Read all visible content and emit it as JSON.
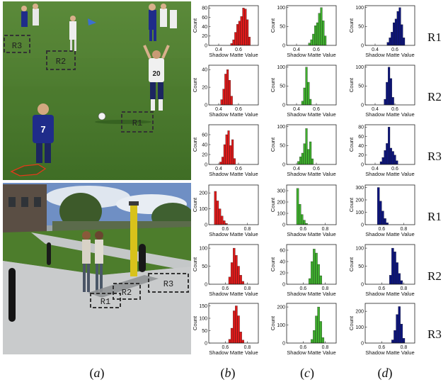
{
  "photos": {
    "soccer": {
      "regions": [
        "R3",
        "R2",
        "R1"
      ],
      "player_numbers": [
        "7",
        "20"
      ]
    },
    "campus": {
      "regions": [
        "R1",
        "R2",
        "R3"
      ]
    }
  },
  "column_labels": [
    {
      "open": "(",
      "letter": "a",
      "close": ")"
    },
    {
      "open": "(",
      "letter": "b",
      "close": ")"
    },
    {
      "open": "(",
      "letter": "c",
      "close": ")"
    },
    {
      "open": "(",
      "letter": "d",
      "close": ")"
    }
  ],
  "row_labels": [
    "R1",
    "R2",
    "R3",
    "R1",
    "R2",
    "R3"
  ],
  "colors": {
    "red": "#dd1a1a",
    "green": "#3fae2e",
    "blue": "#0d157d"
  },
  "chart_data": [
    {
      "type": "bar",
      "ylabel": "Count",
      "xlabel": "Shadow Matte Value",
      "xlim": [
        0.3,
        0.8
      ],
      "xticks": [
        0.4,
        0.6
      ],
      "ylim": [
        0,
        85
      ],
      "yticks": [
        0,
        20,
        40,
        60,
        80
      ],
      "color": "red",
      "x": [
        0.53,
        0.55,
        0.57,
        0.59,
        0.61,
        0.63,
        0.65,
        0.67,
        0.69,
        0.71
      ],
      "values": [
        4,
        12,
        28,
        45,
        52,
        62,
        80,
        78,
        55,
        18
      ]
    },
    {
      "type": "bar",
      "ylabel": "Count",
      "xlabel": "Shadow Matte Value",
      "xlim": [
        0.3,
        0.8
      ],
      "xticks": [
        0.4,
        0.6
      ],
      "ylim": [
        0,
        105
      ],
      "yticks": [
        0,
        50,
        100
      ],
      "color": "green",
      "x": [
        0.53,
        0.55,
        0.57,
        0.59,
        0.61,
        0.63,
        0.65,
        0.67,
        0.69
      ],
      "values": [
        6,
        15,
        30,
        52,
        60,
        85,
        100,
        65,
        25
      ]
    },
    {
      "type": "bar",
      "ylabel": "Count",
      "xlabel": "Shadow Matte Value",
      "xlim": [
        0.3,
        0.8
      ],
      "xticks": [
        0.4,
        0.6
      ],
      "ylim": [
        0,
        105
      ],
      "yticks": [
        0,
        50,
        100
      ],
      "color": "blue",
      "x": [
        0.53,
        0.55,
        0.57,
        0.59,
        0.61,
        0.63,
        0.65,
        0.67,
        0.69
      ],
      "values": [
        8,
        20,
        35,
        60,
        70,
        90,
        100,
        55,
        20
      ]
    },
    {
      "type": "bar",
      "ylabel": "Count",
      "xlabel": "Shadow Matte Value",
      "xlim": [
        0.3,
        0.8
      ],
      "xticks": [
        0.4,
        0.6
      ],
      "ylim": [
        0,
        45
      ],
      "yticks": [
        0,
        20,
        40
      ],
      "color": "red",
      "x": [
        0.43,
        0.45,
        0.47,
        0.49,
        0.51,
        0.53
      ],
      "values": [
        6,
        18,
        35,
        40,
        28,
        10
      ]
    },
    {
      "type": "bar",
      "ylabel": "Count",
      "xlabel": "Shadow Matte Value",
      "xlim": [
        0.3,
        0.8
      ],
      "xticks": [
        0.4,
        0.6
      ],
      "ylim": [
        0,
        105
      ],
      "yticks": [
        0,
        50,
        100
      ],
      "color": "green",
      "x": [
        0.46,
        0.48,
        0.5,
        0.52,
        0.54
      ],
      "values": [
        10,
        45,
        100,
        60,
        15
      ]
    },
    {
      "type": "bar",
      "ylabel": "Count",
      "xlabel": "Shadow Matte Value",
      "xlim": [
        0.3,
        0.8
      ],
      "xticks": [
        0.4,
        0.6
      ],
      "ylim": [
        0,
        105
      ],
      "yticks": [
        0,
        50,
        100
      ],
      "color": "blue",
      "x": [
        0.5,
        0.52,
        0.54,
        0.56,
        0.58
      ],
      "values": [
        15,
        60,
        100,
        70,
        20
      ]
    },
    {
      "type": "bar",
      "ylabel": "Count",
      "xlabel": "Shadow Matte Value",
      "xlim": [
        0.3,
        0.8
      ],
      "xticks": [
        0.4,
        0.6
      ],
      "ylim": [
        0,
        80
      ],
      "yticks": [
        0,
        20,
        40,
        60
      ],
      "color": "red",
      "x": [
        0.42,
        0.44,
        0.46,
        0.48,
        0.5,
        0.52,
        0.54,
        0.56
      ],
      "values": [
        5,
        15,
        40,
        60,
        68,
        38,
        50,
        12
      ]
    },
    {
      "type": "bar",
      "ylabel": "Count",
      "xlabel": "Shadow Matte Value",
      "xlim": [
        0.3,
        0.8
      ],
      "xticks": [
        0.4,
        0.6
      ],
      "ylim": [
        0,
        105
      ],
      "yticks": [
        0,
        50,
        100
      ],
      "color": "green",
      "x": [
        0.42,
        0.44,
        0.46,
        0.48,
        0.5,
        0.52,
        0.54,
        0.56
      ],
      "values": [
        8,
        20,
        30,
        55,
        95,
        40,
        60,
        15
      ]
    },
    {
      "type": "bar",
      "ylabel": "Count",
      "xlabel": "Shadow Matte Value",
      "xlim": [
        0.3,
        0.8
      ],
      "xticks": [
        0.4,
        0.6
      ],
      "ylim": [
        0,
        85
      ],
      "yticks": [
        0,
        20,
        40,
        60,
        80
      ],
      "color": "blue",
      "x": [
        0.46,
        0.48,
        0.5,
        0.52,
        0.54,
        0.56,
        0.58,
        0.6,
        0.62
      ],
      "values": [
        6,
        15,
        30,
        45,
        80,
        35,
        28,
        20,
        8
      ]
    },
    {
      "type": "bar",
      "ylabel": "Count",
      "xlabel": "Shadow Matte Value",
      "xlim": [
        0.45,
        0.9
      ],
      "xticks": [
        0.6,
        0.8
      ],
      "ylim": [
        0,
        250
      ],
      "yticks": [
        0,
        100,
        200
      ],
      "color": "red",
      "x": [
        0.51,
        0.53,
        0.55,
        0.57,
        0.59,
        0.61
      ],
      "values": [
        210,
        150,
        100,
        55,
        25,
        8
      ]
    },
    {
      "type": "bar",
      "ylabel": "Count",
      "xlabel": "Shadow Matte Value",
      "xlim": [
        0.45,
        0.9
      ],
      "xticks": [
        0.6,
        0.8
      ],
      "ylim": [
        0,
        350
      ],
      "yticks": [
        0,
        100,
        200,
        300
      ],
      "color": "green",
      "x": [
        0.55,
        0.57,
        0.59,
        0.61,
        0.63
      ],
      "values": [
        320,
        180,
        90,
        40,
        12
      ]
    },
    {
      "type": "bar",
      "ylabel": "Count",
      "xlabel": "Shadow Matte Value",
      "xlim": [
        0.45,
        0.9
      ],
      "xticks": [
        0.6,
        0.8
      ],
      "ylim": [
        0,
        320
      ],
      "yticks": [
        0,
        100,
        200,
        300
      ],
      "color": "blue",
      "x": [
        0.57,
        0.59,
        0.61,
        0.63,
        0.65
      ],
      "values": [
        300,
        190,
        110,
        50,
        15
      ]
    },
    {
      "type": "bar",
      "ylabel": "Count",
      "xlabel": "Shadow Matte Value",
      "xlim": [
        0.45,
        0.9
      ],
      "xticks": [
        0.6,
        0.8
      ],
      "ylim": [
        0,
        110
      ],
      "yticks": [
        0,
        50,
        100
      ],
      "color": "red",
      "x": [
        0.64,
        0.66,
        0.68,
        0.7,
        0.72,
        0.74,
        0.76
      ],
      "values": [
        20,
        60,
        100,
        80,
        50,
        25,
        8
      ]
    },
    {
      "type": "bar",
      "ylabel": "Count",
      "xlabel": "Shadow Matte Value",
      "xlim": [
        0.45,
        0.9
      ],
      "xticks": [
        0.6,
        0.8
      ],
      "ylim": [
        0,
        70
      ],
      "yticks": [
        0,
        20,
        40,
        60
      ],
      "color": "green",
      "x": [
        0.66,
        0.68,
        0.7,
        0.72,
        0.74,
        0.76
      ],
      "values": [
        10,
        40,
        62,
        55,
        35,
        15
      ]
    },
    {
      "type": "bar",
      "ylabel": "Count",
      "xlabel": "Shadow Matte Value",
      "xlim": [
        0.45,
        0.9
      ],
      "xticks": [
        0.6,
        0.8
      ],
      "ylim": [
        0,
        110
      ],
      "yticks": [
        0,
        50,
        100
      ],
      "color": "blue",
      "x": [
        0.68,
        0.7,
        0.72,
        0.74,
        0.76,
        0.78
      ],
      "values": [
        25,
        100,
        90,
        60,
        30,
        10
      ]
    },
    {
      "type": "bar",
      "ylabel": "Count",
      "xlabel": "Shadow Matte Value",
      "xlim": [
        0.45,
        0.9
      ],
      "xticks": [
        0.6,
        0.8
      ],
      "ylim": [
        0,
        160
      ],
      "yticks": [
        0,
        50,
        100,
        150
      ],
      "color": "red",
      "x": [
        0.64,
        0.66,
        0.68,
        0.7,
        0.72,
        0.74,
        0.76
      ],
      "values": [
        15,
        60,
        130,
        150,
        110,
        45,
        12
      ]
    },
    {
      "type": "bar",
      "ylabel": "Count",
      "xlabel": "Shadow Matte Value",
      "xlim": [
        0.45,
        0.9
      ],
      "xticks": [
        0.6,
        0.8
      ],
      "ylim": [
        0,
        220
      ],
      "yticks": [
        0,
        100,
        200
      ],
      "color": "green",
      "x": [
        0.68,
        0.7,
        0.72,
        0.74,
        0.76,
        0.78
      ],
      "values": [
        20,
        70,
        150,
        200,
        120,
        30
      ]
    },
    {
      "type": "bar",
      "ylabel": "Count",
      "xlabel": "Shadow Matte Value",
      "xlim": [
        0.45,
        0.9
      ],
      "xticks": [
        0.6,
        0.8
      ],
      "ylim": [
        0,
        250
      ],
      "yticks": [
        0,
        100,
        200
      ],
      "color": "blue",
      "x": [
        0.7,
        0.72,
        0.74,
        0.76,
        0.78,
        0.8
      ],
      "values": [
        20,
        80,
        180,
        230,
        120,
        30
      ]
    }
  ]
}
